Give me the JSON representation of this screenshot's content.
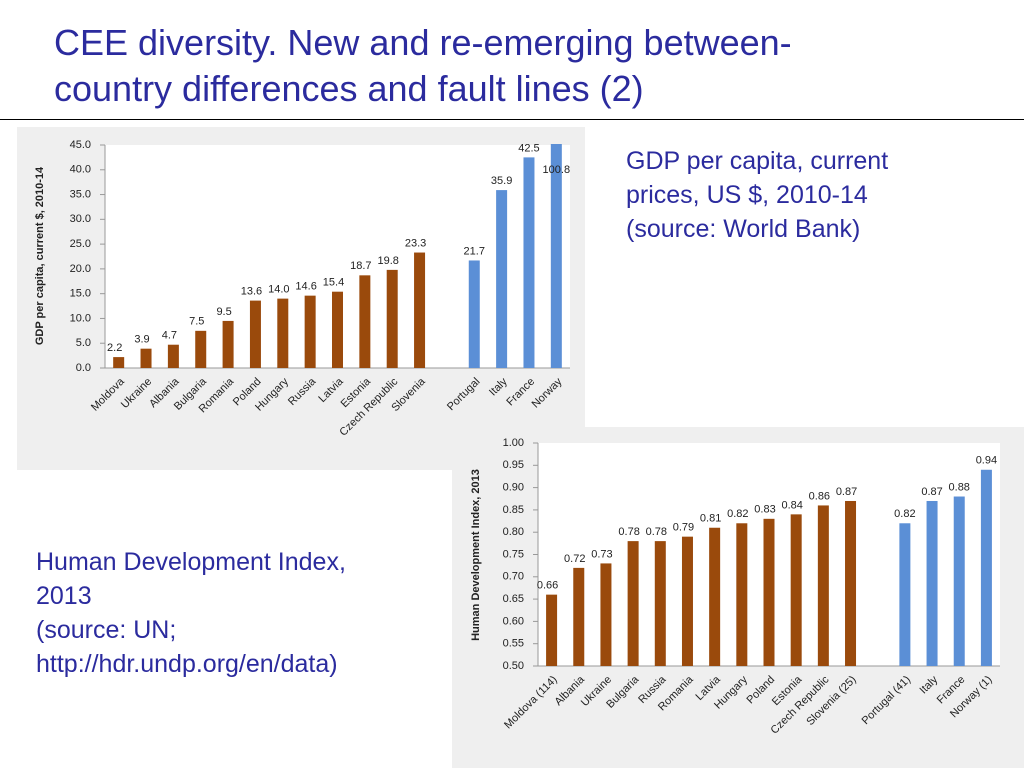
{
  "title": [
    "CEE diversity. New and re-emerging between-",
    "country differences and fault lines (2)"
  ],
  "captions": [
    [
      "GDP per capita, current",
      "prices, US $, 2010-14",
      "(source: World Bank)"
    ],
    [
      "Human Development Index,",
      "2013",
      "(source: UN;",
      "http://hdr.undp.org/en/data)"
    ]
  ],
  "chart_data": [
    {
      "type": "bar",
      "y_label": "GDP per capita, current $, 2010-14",
      "categories": [
        "Moldova",
        "Ukraine",
        "Albania",
        "Bulgaria",
        "Romania",
        "Poland",
        "Hungary",
        "Russia",
        "Latvia",
        "Estonia",
        "Czech Republic",
        "Slovenia",
        null,
        "Portugal",
        "Italy",
        "France",
        "Norway"
      ],
      "values": [
        2.2,
        3.9,
        4.7,
        7.5,
        9.5,
        13.6,
        14.0,
        14.6,
        15.4,
        18.7,
        19.8,
        23.3,
        null,
        21.7,
        35.9,
        42.5,
        100.8
      ],
      "value_labels": [
        "2.2",
        "3.9",
        "4.7",
        "7.5",
        "9.5",
        "13.6",
        "14.0",
        "14.6",
        "15.4",
        "18.7",
        "19.8",
        "23.3",
        null,
        "21.7",
        "35.9",
        "42.5",
        "100.8"
      ],
      "colors": [
        "#9a4a0c",
        "#9a4a0c",
        "#9a4a0c",
        "#9a4a0c",
        "#9a4a0c",
        "#9a4a0c",
        "#9a4a0c",
        "#9a4a0c",
        "#9a4a0c",
        "#9a4a0c",
        "#9a4a0c",
        "#9a4a0c",
        null,
        "#5b8fd6",
        "#5b8fd6",
        "#5b8fd6",
        "#5b8fd6"
      ],
      "ylim": [
        0,
        45
      ],
      "yticks": [
        {
          "value": 0,
          "label": "0.0"
        },
        {
          "value": 5,
          "label": "5.0"
        },
        {
          "value": 10,
          "label": "10.0"
        },
        {
          "value": 15,
          "label": "15.0"
        },
        {
          "value": 20,
          "label": "20.0"
        },
        {
          "value": 25,
          "label": "25.0"
        },
        {
          "value": 30,
          "label": "30.0"
        },
        {
          "value": 35,
          "label": "35.0"
        },
        {
          "value": 40,
          "label": "40.0"
        },
        {
          "value": 45,
          "label": "45.0"
        }
      ],
      "grid": false
    },
    {
      "type": "bar",
      "y_label": "Human Development Index, 2013",
      "categories": [
        "Moldova (114)",
        "Albania",
        "Ukraine",
        "Bulgaria",
        "Russia",
        "Romania",
        "Latvia",
        "Hungary",
        "Poland",
        "Estonia",
        "Czech Republic",
        "Slovenia (25)",
        null,
        "Portugal (41)",
        "Italy",
        "France",
        "Norway (1)"
      ],
      "values": [
        0.66,
        0.72,
        0.73,
        0.78,
        0.78,
        0.79,
        0.81,
        0.82,
        0.83,
        0.84,
        0.86,
        0.87,
        null,
        0.82,
        0.87,
        0.88,
        0.94
      ],
      "colors": [
        "#9a4a0c",
        "#9a4a0c",
        "#9a4a0c",
        "#9a4a0c",
        "#9a4a0c",
        "#9a4a0c",
        "#9a4a0c",
        "#9a4a0c",
        "#9a4a0c",
        "#9a4a0c",
        "#9a4a0c",
        "#9a4a0c",
        null,
        "#5b8fd6",
        "#5b8fd6",
        "#5b8fd6",
        "#5b8fd6"
      ],
      "ylim": [
        0.5,
        1.0
      ],
      "yticks": [
        {
          "value": 0.5,
          "label": "0.50"
        },
        {
          "value": 0.55,
          "label": "0.55"
        },
        {
          "value": 0.6,
          "label": "0.60"
        },
        {
          "value": 0.65,
          "label": "0.65"
        },
        {
          "value": 0.7,
          "label": "0.70"
        },
        {
          "value": 0.75,
          "label": "0.75"
        },
        {
          "value": 0.8,
          "label": "0.80"
        },
        {
          "value": 0.85,
          "label": "0.85"
        },
        {
          "value": 0.9,
          "label": "0.90"
        },
        {
          "value": 0.95,
          "label": "0.95"
        },
        {
          "value": 1.0,
          "label": "1.00"
        }
      ],
      "grid": false
    }
  ]
}
